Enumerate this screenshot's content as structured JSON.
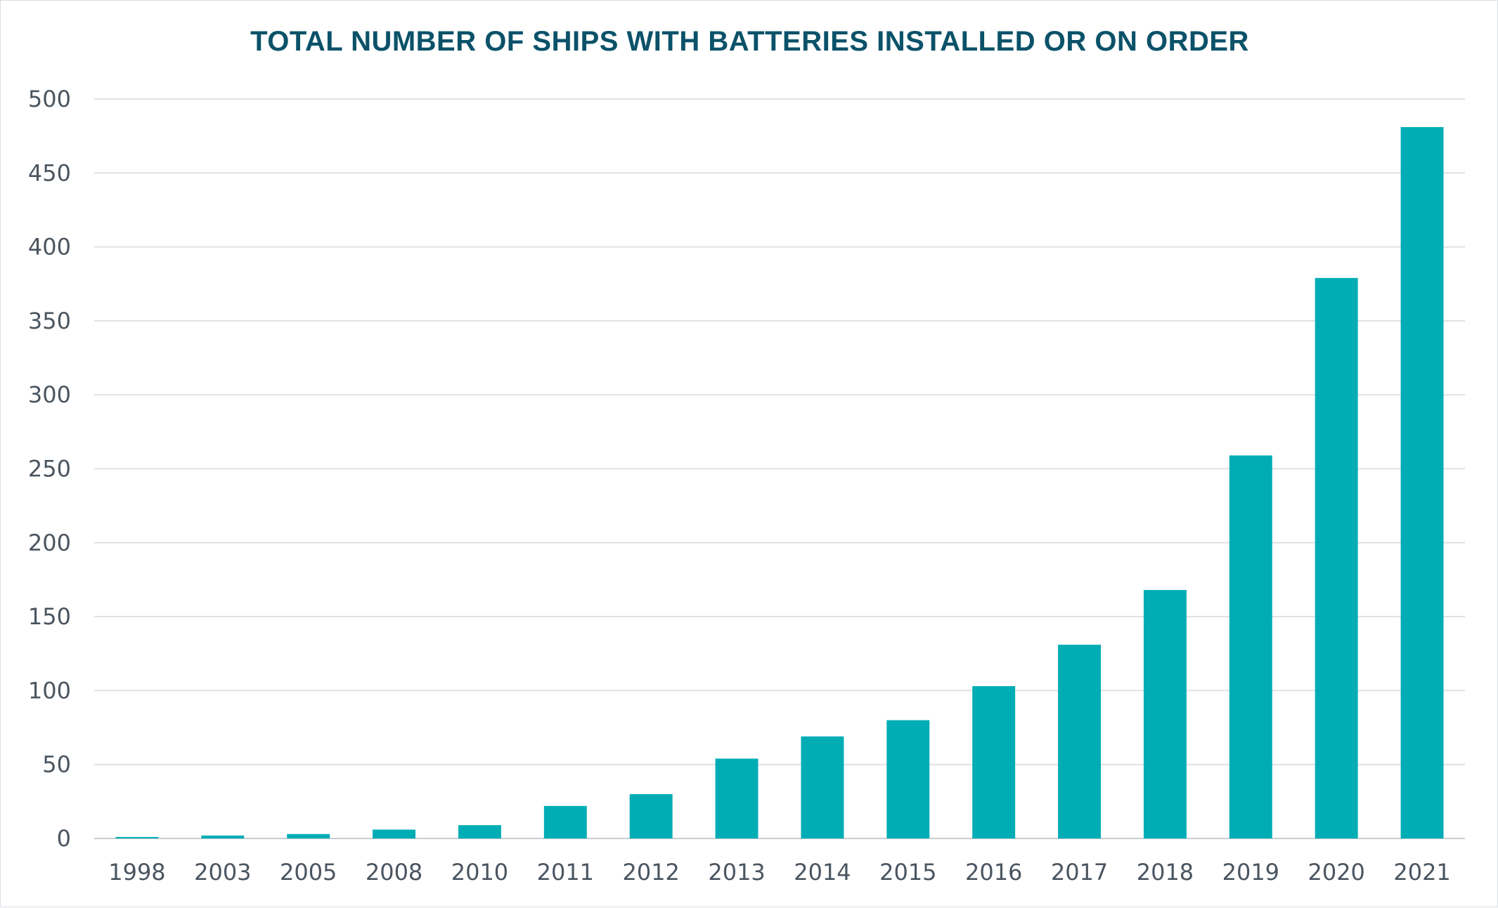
{
  "chart_data": {
    "type": "bar",
    "title": "TOTAL NUMBER OF SHIPS WITH BATTERIES INSTALLED OR ON ORDER",
    "xlabel": "",
    "ylabel": "",
    "categories": [
      "1998",
      "2003",
      "2005",
      "2008",
      "2010",
      "2011",
      "2012",
      "2013",
      "2014",
      "2015",
      "2016",
      "2017",
      "2018",
      "2019",
      "2020",
      "2021"
    ],
    "values": [
      1,
      2,
      3,
      6,
      9,
      22,
      30,
      54,
      69,
      80,
      103,
      131,
      168,
      259,
      379,
      481
    ],
    "ylim": [
      0,
      500
    ],
    "yticks": [
      0,
      50,
      100,
      150,
      200,
      250,
      300,
      350,
      400,
      450,
      500
    ],
    "grid": true,
    "legend": "none",
    "colors": {
      "bar": "#00adb5",
      "title": "#0b5269",
      "gridline": "#dde1e6",
      "tick_text": "#4a5560"
    }
  }
}
